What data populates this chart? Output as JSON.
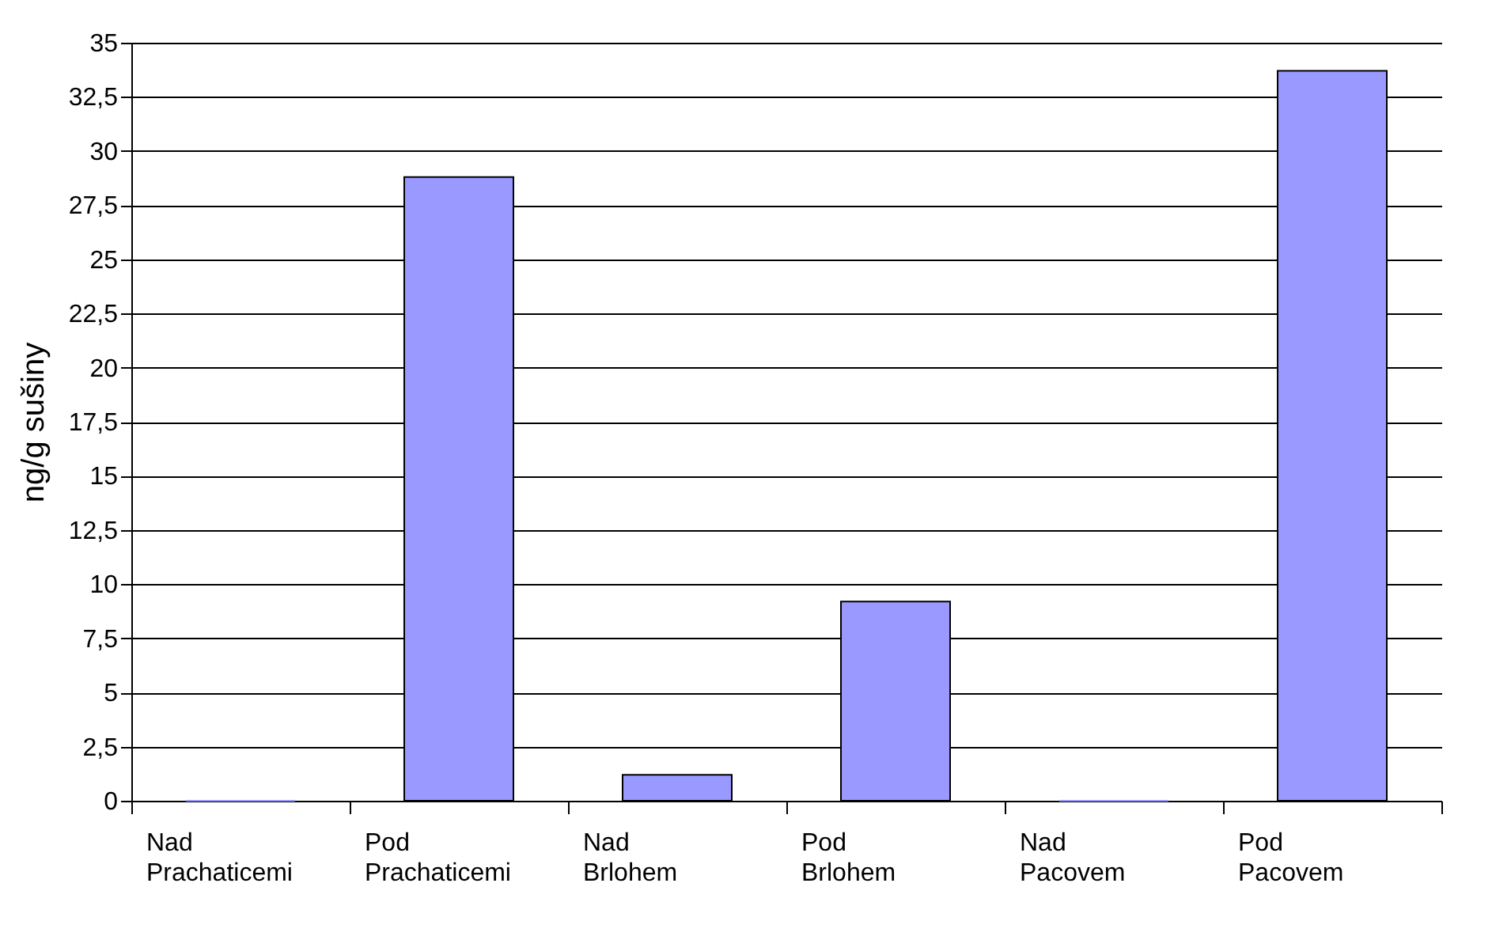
{
  "chart_data": {
    "type": "bar",
    "ylabel": "ng/g sušiny",
    "categories": [
      "Nad Prachaticemi",
      "Pod Prachaticemi",
      "Nad Brlohem",
      "Pod Brlohem",
      "Nad Pacovem",
      "Pod Pacovem"
    ],
    "values": [
      0,
      28.8,
      1.2,
      9.2,
      0,
      33.7
    ],
    "color": "#9999ff",
    "ylim": [
      0,
      35
    ],
    "yticks": [
      0,
      {
        "value": 2.5,
        "label": "2,5"
      },
      5,
      {
        "value": 7.5,
        "label": "7,5"
      },
      10,
      {
        "value": 12.5,
        "label": "12,5"
      },
      15,
      {
        "value": 17.5,
        "label": "17,5"
      },
      20,
      {
        "value": 22.5,
        "label": "22,5"
      },
      25,
      {
        "value": 27.5,
        "label": "27,5"
      },
      30,
      {
        "value": 32.5,
        "label": "32,5"
      },
      35
    ],
    "grid": "y"
  }
}
